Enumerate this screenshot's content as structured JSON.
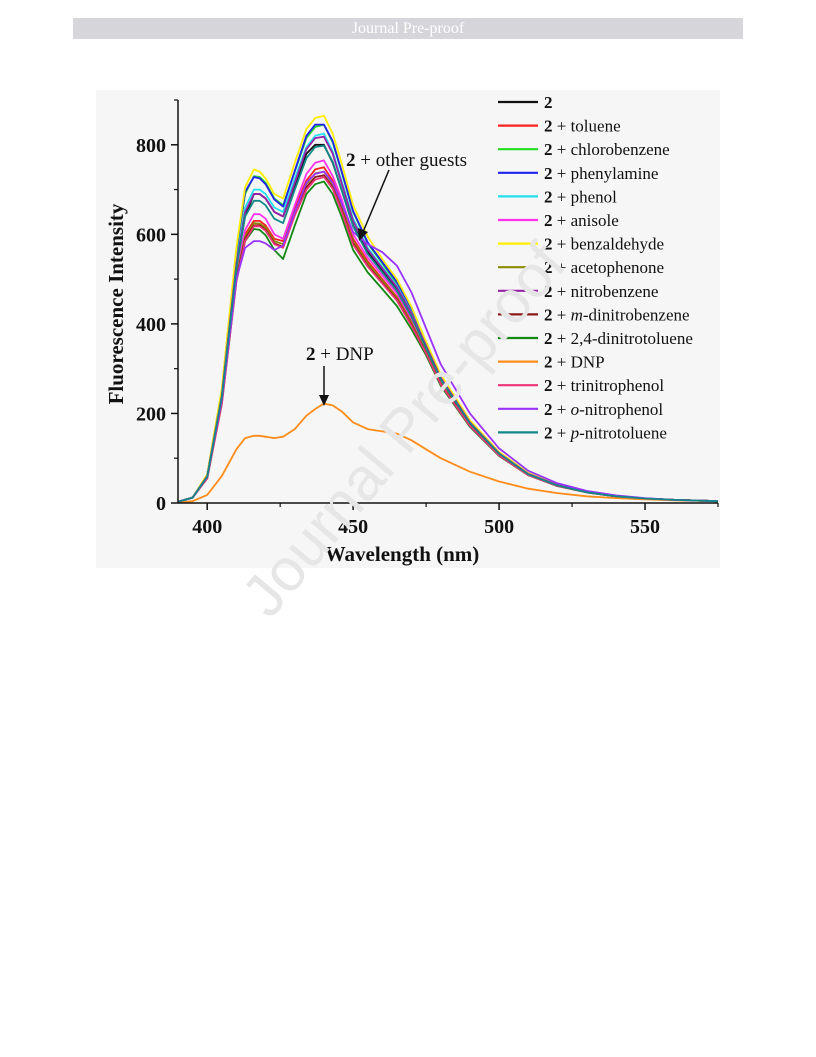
{
  "header": {
    "banner_text": "Journal Pre-proof"
  },
  "watermark": {
    "text": "Journal Pre-proof"
  },
  "chart_data": {
    "type": "line",
    "title": "",
    "xlabel": "Wavelength (nm)",
    "ylabel": "Fluorescence Intensity",
    "xlim": [
      390,
      575
    ],
    "ylim": [
      0,
      900
    ],
    "x_ticks": [
      400,
      450,
      500,
      550
    ],
    "y_ticks": [
      0,
      200,
      400,
      600,
      800
    ],
    "grid": false,
    "legend_position": "top-right",
    "annotations": [
      {
        "text": "2 + other guests",
        "points_to": [
          452,
          600
        ]
      },
      {
        "text": "2 + DNP",
        "points_to": [
          440,
          222
        ]
      }
    ],
    "x": [
      390,
      395,
      400,
      405,
      410,
      413,
      416,
      418,
      420,
      423,
      426,
      430,
      434,
      437,
      440,
      443,
      446,
      450,
      455,
      460,
      465,
      470,
      475,
      480,
      490,
      500,
      510,
      520,
      530,
      540,
      550,
      560,
      575
    ],
    "series": [
      {
        "name": "2",
        "label_bold": "2",
        "label_rest": " ",
        "label_italic": "",
        "label_tail": "",
        "color": "#111111",
        "values": [
          3,
          12,
          60,
          240,
          530,
          640,
          690,
          690,
          680,
          650,
          640,
          710,
          780,
          800,
          800,
          760,
          700,
          620,
          560,
          520,
          480,
          420,
          350,
          280,
          180,
          110,
          65,
          40,
          25,
          16,
          10,
          7,
          4
        ]
      },
      {
        "name": "2 + toluene",
        "label_bold": "2",
        "label_rest": " + toluene",
        "label_italic": "",
        "label_tail": "",
        "color": "#ff2020",
        "values": [
          3,
          12,
          58,
          230,
          510,
          600,
          630,
          630,
          620,
          590,
          585,
          660,
          720,
          745,
          750,
          720,
          670,
          590,
          540,
          500,
          460,
          405,
          340,
          270,
          175,
          108,
          63,
          38,
          24,
          15,
          10,
          7,
          4
        ]
      },
      {
        "name": "2 + chlorobenzene",
        "label_bold": "2",
        "label_rest": " + chlorobenzene",
        "label_italic": "",
        "label_tail": "",
        "color": "#22dd22",
        "values": [
          3,
          12,
          62,
          250,
          560,
          690,
          730,
          728,
          715,
          680,
          665,
          740,
          815,
          840,
          845,
          805,
          740,
          650,
          580,
          535,
          490,
          430,
          355,
          283,
          182,
          112,
          66,
          40,
          25,
          16,
          10,
          7,
          4
        ]
      },
      {
        "name": "2 + phenylamine",
        "label_bold": "2",
        "label_rest": " + phenylamine",
        "label_italic": "",
        "label_tail": "",
        "color": "#2222ee",
        "values": [
          3,
          12,
          63,
          252,
          565,
          695,
          728,
          725,
          712,
          678,
          662,
          742,
          820,
          845,
          845,
          808,
          742,
          652,
          582,
          538,
          494,
          434,
          358,
          285,
          184,
          113,
          66,
          40,
          25,
          16,
          10,
          7,
          4
        ]
      },
      {
        "name": "2 + phenol",
        "label_bold": "2",
        "label_rest": " + phenol",
        "label_italic": "",
        "label_tail": "",
        "color": "#22e0ee",
        "values": [
          3,
          12,
          60,
          240,
          540,
          660,
          700,
          700,
          690,
          660,
          650,
          725,
          795,
          820,
          825,
          785,
          720,
          635,
          570,
          527,
          485,
          425,
          352,
          281,
          181,
          111,
          65,
          40,
          25,
          16,
          10,
          7,
          4
        ]
      },
      {
        "name": "2 + anisole",
        "label_bold": "2",
        "label_rest": " + anisole",
        "label_italic": "",
        "label_tail": "",
        "color": "#ff33ee",
        "values": [
          3,
          12,
          58,
          232,
          515,
          610,
          645,
          645,
          635,
          600,
          590,
          665,
          735,
          760,
          765,
          730,
          680,
          600,
          548,
          508,
          468,
          412,
          344,
          273,
          177,
          109,
          64,
          39,
          24,
          15,
          10,
          7,
          4
        ]
      },
      {
        "name": "2 + benzaldehyde",
        "label_bold": "2",
        "label_rest": " + benzaldehyde",
        "label_italic": "",
        "label_tail": "",
        "color": "#ffee00",
        "values": [
          3,
          12,
          64,
          255,
          570,
          705,
          745,
          740,
          725,
          690,
          680,
          760,
          835,
          860,
          865,
          825,
          760,
          665,
          595,
          545,
          500,
          438,
          360,
          287,
          185,
          114,
          67,
          41,
          25,
          16,
          10,
          7,
          4
        ]
      },
      {
        "name": "2 + acetophenone",
        "label_bold": "2",
        "label_rest": " + acetophenone",
        "label_italic": "",
        "label_tail": "",
        "color": "#8a8a00",
        "values": [
          3,
          12,
          57,
          228,
          505,
          595,
          625,
          624,
          615,
          585,
          578,
          650,
          712,
          736,
          740,
          712,
          662,
          585,
          535,
          497,
          458,
          402,
          338,
          268,
          174,
          107,
          63,
          38,
          24,
          15,
          10,
          7,
          4
        ]
      },
      {
        "name": "2 + nitrobenzene",
        "label_bold": "2",
        "label_rest": " + nitrobenzene",
        "label_italic": "",
        "label_tail": "",
        "color": "#9922aa",
        "values": [
          3,
          12,
          60,
          240,
          535,
          650,
          690,
          690,
          680,
          650,
          640,
          715,
          790,
          815,
          818,
          780,
          715,
          630,
          566,
          524,
          482,
          423,
          351,
          280,
          180,
          111,
          65,
          40,
          25,
          16,
          10,
          7,
          4
        ]
      },
      {
        "name": "2 + m-dinitrobenzene",
        "label_bold": "2",
        "label_rest": " + ",
        "label_italic": "m",
        "label_tail": "-dinitrobenzene",
        "color": "#8b1a1a",
        "values": [
          3,
          12,
          56,
          225,
          500,
          590,
          620,
          620,
          610,
          580,
          572,
          645,
          705,
          728,
          732,
          705,
          656,
          580,
          530,
          492,
          454,
          398,
          335,
          266,
          173,
          106,
          62,
          38,
          24,
          15,
          10,
          7,
          4
        ]
      },
      {
        "name": "2 + 2,4-dinitrotoluene",
        "label_bold": "2",
        "label_rest": " + 2,4-dinitrotoluene",
        "label_italic": "",
        "label_tail": "",
        "color": "#118811",
        "values": [
          3,
          12,
          55,
          222,
          495,
          585,
          612,
          610,
          598,
          565,
          545,
          620,
          690,
          712,
          718,
          690,
          640,
          565,
          515,
          478,
          440,
          388,
          330,
          262,
          170,
          105,
          62,
          38,
          24,
          15,
          10,
          7,
          4
        ]
      },
      {
        "name": "2 + DNP",
        "label_bold": "2",
        "label_rest": " + DNP",
        "label_italic": "",
        "label_tail": "",
        "color": "#ff8c1a",
        "values": [
          1,
          4,
          18,
          60,
          120,
          145,
          150,
          150,
          148,
          145,
          148,
          165,
          195,
          210,
          222,
          218,
          205,
          180,
          165,
          160,
          155,
          140,
          120,
          100,
          70,
          48,
          32,
          22,
          15,
          11,
          8,
          6,
          4
        ]
      },
      {
        "name": "2 + trinitrophenol",
        "label_bold": "2",
        "label_rest": " + trinitrophenol",
        "label_italic": "",
        "label_tail": "",
        "color": "#ee3377",
        "values": [
          3,
          12,
          55,
          220,
          495,
          585,
          618,
          618,
          608,
          578,
          570,
          642,
          700,
          722,
          728,
          702,
          652,
          577,
          528,
          490,
          452,
          396,
          334,
          265,
          172,
          106,
          62,
          38,
          24,
          15,
          10,
          7,
          4
        ]
      },
      {
        "name": "2 + o-nitrophenol",
        "label_bold": "2",
        "label_rest": " + ",
        "label_italic": "o",
        "label_tail": "-nitrophenol",
        "color": "#9933ff",
        "values": [
          3,
          12,
          58,
          230,
          500,
          570,
          585,
          585,
          580,
          565,
          575,
          650,
          715,
          735,
          740,
          715,
          670,
          605,
          578,
          560,
          530,
          470,
          390,
          310,
          200,
          122,
          72,
          44,
          27,
          17,
          11,
          7,
          4
        ]
      },
      {
        "name": "2 + p-nitrotoluene",
        "label_bold": "2",
        "label_rest": " + ",
        "label_italic": "p",
        "label_tail": "-nitrotoluene",
        "color": "#118888",
        "values": [
          3,
          12,
          59,
          236,
          525,
          640,
          675,
          675,
          665,
          635,
          625,
          700,
          770,
          795,
          798,
          762,
          700,
          618,
          556,
          515,
          474,
          416,
          346,
          276,
          178,
          110,
          64,
          39,
          24,
          15,
          10,
          7,
          4
        ]
      }
    ]
  }
}
